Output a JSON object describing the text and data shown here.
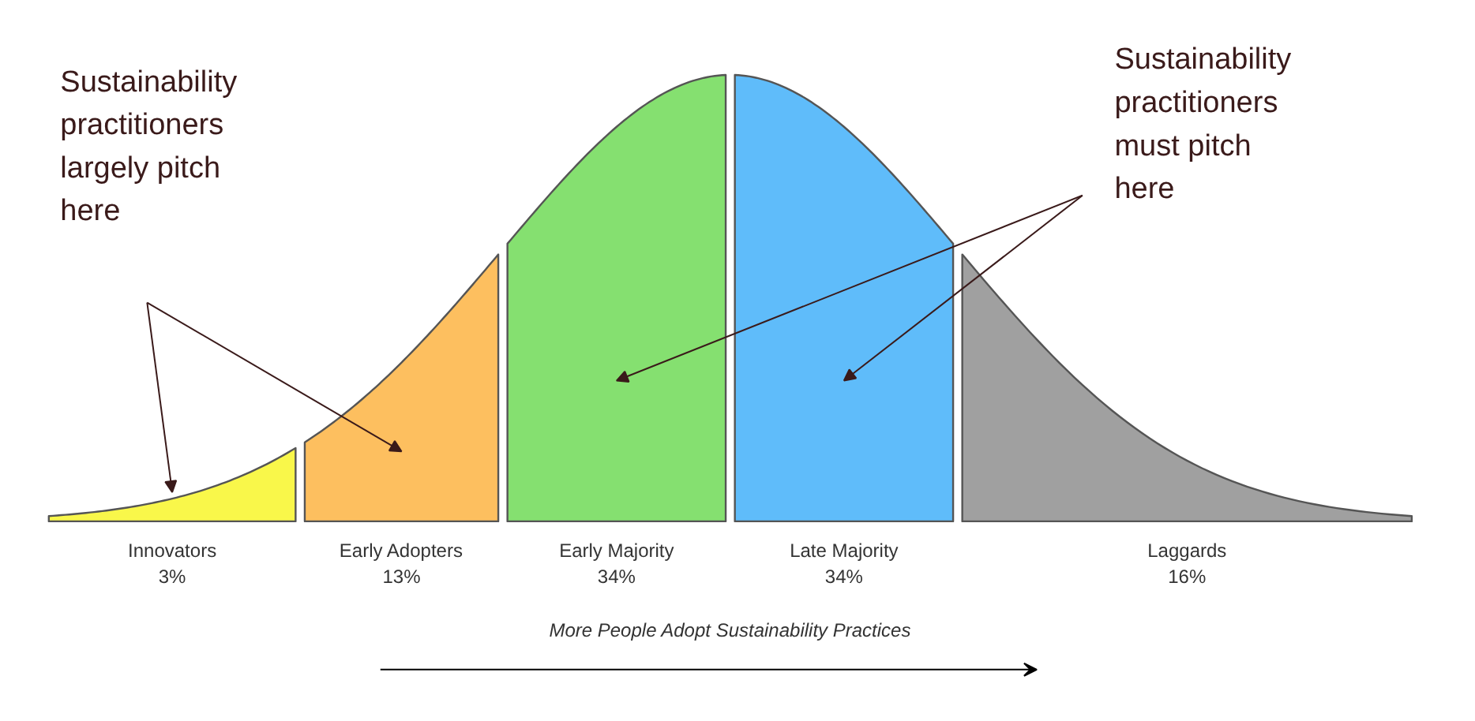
{
  "chart_data": {
    "type": "other",
    "categories": [
      "Innovators",
      "Early Adopters",
      "Early Majority",
      "Late Majority",
      "Laggards"
    ],
    "values": [
      3,
      13,
      34,
      34,
      16
    ],
    "colors": [
      "#f9f74a",
      "#fdbf5f",
      "#85e070",
      "#5fbcfa",
      "#a0a0a0"
    ],
    "value_labels": [
      "3%",
      "13%",
      "34%",
      "34%",
      "16%"
    ],
    "xlabel": "More People Adopt Sustainability Practices",
    "annotations": [
      "Sustainability practitioners largely pitch here",
      "Sustainability practitioners must pitch here"
    ]
  }
}
